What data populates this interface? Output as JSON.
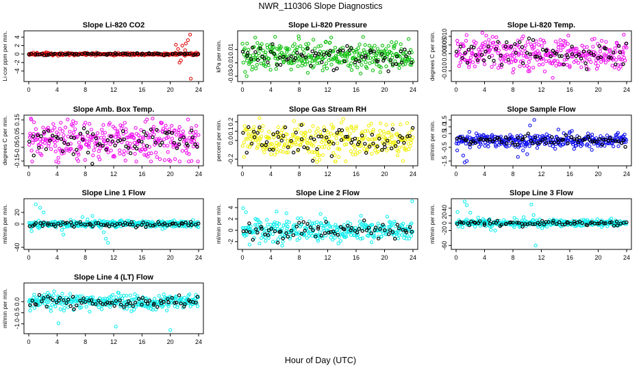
{
  "figure": {
    "title": "NWR_110306  Slope Diagnostics",
    "xlabel": "Hour of Day (UTC)"
  },
  "chart_data": [
    {
      "type": "scatter",
      "title": "Slope Li-820 CO2",
      "ylabel": "Li-cor ppm per min.",
      "xlim": [
        0,
        24
      ],
      "xticks": [
        "0",
        "4",
        "8",
        "12",
        "16",
        "20",
        "24"
      ],
      "ylim": [
        -6,
        5
      ],
      "yticks": [
        "-4",
        "-2",
        "0",
        "2",
        "4"
      ],
      "ytick_values": [
        -4,
        -2,
        0,
        2,
        4
      ],
      "color": "#e01010",
      "spread": 0.15,
      "outliers": [
        [
          20.8,
          2.2
        ],
        [
          21.1,
          1.2
        ],
        [
          21.3,
          -2.0
        ],
        [
          21.5,
          -1.5
        ],
        [
          22.2,
          2.5
        ],
        [
          22.5,
          3.3
        ],
        [
          22.8,
          4.6
        ],
        [
          22.9,
          -5.8
        ],
        [
          21.7,
          2.0
        ],
        [
          22.1,
          0.9
        ]
      ]
    },
    {
      "type": "scatter",
      "title": "Slope Li-820 Pressure",
      "ylabel": "kPa per min.",
      "xlim": [
        0,
        24
      ],
      "xticks": [
        "0",
        "4",
        "8",
        "12",
        "16",
        "20",
        "24"
      ],
      "ylim": [
        -0.035,
        0.035
      ],
      "yticks": [
        "-0.03",
        "-0.01",
        "0.01"
      ],
      "ytick_values": [
        -0.03,
        -0.01,
        0.01
      ],
      "color": "#10c010",
      "spread": 0.011,
      "outliers": [
        [
          0.6,
          -0.03
        ],
        [
          1.8,
          0.028
        ],
        [
          4.6,
          0.029
        ],
        [
          7.9,
          0.03
        ],
        [
          12.5,
          0.028
        ],
        [
          19.4,
          -0.024
        ],
        [
          9.2,
          -0.025
        ]
      ]
    },
    {
      "type": "scatter",
      "title": "Slope Li-820 Temp.",
      "ylabel": "degrees C per min.",
      "xlim": [
        0,
        24
      ],
      "xticks": [
        "0",
        "4",
        "8",
        "12",
        "16",
        "20",
        "24"
      ],
      "ylim": [
        -0.015,
        0.012
      ],
      "yticks": [
        "-0.010",
        "0.000",
        "0.005",
        "0.010"
      ],
      "ytick_values": [
        -0.01,
        0,
        0.005,
        0.01
      ],
      "color": "#ee10ee",
      "spread": 0.0045,
      "outliers": [
        [
          3.7,
          0.012
        ],
        [
          13.6,
          -0.014
        ],
        [
          8.0,
          -0.011
        ],
        [
          23.6,
          0.011
        ]
      ]
    },
    {
      "type": "scatter",
      "title": "Slope Amb. Box Temp.",
      "ylabel": "degrees C per min.",
      "xlim": [
        0,
        24
      ],
      "xticks": [
        "0",
        "4",
        "8",
        "12",
        "16",
        "20",
        "24"
      ],
      "ylim": [
        -0.17,
        0.17
      ],
      "yticks": [
        "-0.15",
        "-0.05",
        "0.05",
        "0.15"
      ],
      "ytick_values": [
        -0.15,
        -0.05,
        0.05,
        0.15
      ],
      "color": "#ee10ee",
      "spread": 0.07,
      "outliers": [
        [
          0.3,
          0.16
        ],
        [
          4.2,
          -0.16
        ],
        [
          7.0,
          -0.15
        ],
        [
          17.5,
          0.16
        ],
        [
          23.0,
          -0.15
        ]
      ]
    },
    {
      "type": "scatter",
      "title": "Slope Gas Stream RH",
      "ylabel": "percent per min.",
      "xlim": [
        0,
        24
      ],
      "xticks": [
        "0",
        "4",
        "8",
        "12",
        "16",
        "20",
        "24"
      ],
      "ylim": [
        -0.25,
        0.25
      ],
      "yticks": [
        "-0.2",
        "0.0",
        "0.1",
        "0.2"
      ],
      "ytick_values": [
        -0.2,
        0,
        0.1,
        0.2
      ],
      "color": "#f0f010",
      "spread": 0.09,
      "outliers": [
        [
          2.4,
          0.24
        ],
        [
          10.5,
          -0.23
        ],
        [
          22.6,
          -0.22
        ],
        [
          14.2,
          0.23
        ]
      ]
    },
    {
      "type": "scatter",
      "title": "Slope Sample Flow",
      "ylabel": "ml/min per min.",
      "xlim": [
        0,
        24
      ],
      "xticks": [
        "0",
        "4",
        "8",
        "12",
        "16",
        "20",
        "24"
      ],
      "ylim": [
        -1.7,
        1.7
      ],
      "yticks": [
        "-1.5",
        "-0.5",
        "0.5",
        "1.0",
        "1.5"
      ],
      "ytick_values": [
        -1.5,
        -0.5,
        0.5,
        1.0,
        1.5
      ],
      "color": "#1010ee",
      "spread": 0.25,
      "outliers": [
        [
          1.2,
          -1.6
        ],
        [
          1.5,
          -1.5
        ],
        [
          11.0,
          1.5
        ],
        [
          10.4,
          1.1
        ],
        [
          8.7,
          -1.2
        ],
        [
          10.0,
          -1.0
        ],
        [
          14.4,
          0.8
        ],
        [
          16.3,
          0.7
        ],
        [
          1.0,
          -1.1
        ]
      ]
    },
    {
      "type": "scatter",
      "title": "Slope Line 1 Flow",
      "ylabel": "ml/min per min.",
      "xlim": [
        0,
        24
      ],
      "xticks": [
        "0",
        "4",
        "8",
        "12",
        "16",
        "20",
        "24"
      ],
      "ylim": [
        -40,
        40
      ],
      "yticks": [
        "-40",
        "0",
        "20"
      ],
      "ytick_values": [
        -40,
        0,
        20
      ],
      "color": "#10eeee",
      "spread": 3.0,
      "outliers": [
        [
          1.0,
          34
        ],
        [
          1.6,
          28
        ],
        [
          2.1,
          20
        ],
        [
          0.4,
          -12
        ],
        [
          4.7,
          -10
        ],
        [
          4.9,
          -18
        ],
        [
          10.6,
          -14
        ],
        [
          10.9,
          -25
        ],
        [
          11.2,
          -32
        ],
        [
          7.6,
          12
        ],
        [
          8.3,
          8
        ],
        [
          9.0,
          14
        ]
      ]
    },
    {
      "type": "scatter",
      "title": "Slope Line 2 Flow",
      "ylabel": "ml/min per min.",
      "xlim": [
        0,
        24
      ],
      "xticks": [
        "0",
        "4",
        "8",
        "12",
        "16",
        "20",
        "24"
      ],
      "ylim": [
        -3,
        5.2
      ],
      "yticks": [
        "-2",
        "0",
        "2",
        "4"
      ],
      "ytick_values": [
        -2,
        0,
        2,
        4
      ],
      "color": "#10eeee",
      "spread": 0.9,
      "outliers": [
        [
          0.1,
          3.9
        ],
        [
          0.5,
          3.2
        ],
        [
          4.8,
          3.3
        ],
        [
          6.2,
          3.0
        ],
        [
          11.0,
          2.9
        ],
        [
          23.9,
          5.1
        ],
        [
          1.0,
          -2.5
        ],
        [
          5.6,
          -2.7
        ],
        [
          4.3,
          -2.0
        ],
        [
          13.5,
          -2.3
        ]
      ]
    },
    {
      "type": "scatter",
      "title": "Slope Line 3 Flow",
      "ylabel": "ml/min per min.",
      "xlim": [
        0,
        24
      ],
      "xticks": [
        "0",
        "4",
        "8",
        "12",
        "16",
        "20",
        "24"
      ],
      "ylim": [
        -65,
        60
      ],
      "yticks": [
        "-60",
        "-20",
        "0",
        "20",
        "40"
      ],
      "ytick_values": [
        -60,
        -20,
        0,
        20,
        40
      ],
      "color": "#10eeee",
      "spread": 4.5,
      "outliers": [
        [
          1.2,
          58
        ],
        [
          1.5,
          48
        ],
        [
          2.0,
          28
        ],
        [
          0.2,
          30
        ],
        [
          4.9,
          -18
        ],
        [
          5.5,
          -20
        ],
        [
          10.6,
          50
        ],
        [
          10.9,
          22
        ],
        [
          11.2,
          -60
        ],
        [
          8.2,
          14
        ],
        [
          9.5,
          16
        ],
        [
          3.1,
          15
        ]
      ]
    },
    {
      "type": "scatter",
      "title": "Slope Line 4 (LT) Flow",
      "ylabel": "ml/min per min.",
      "xlim": [
        0,
        24
      ],
      "xticks": [
        "0",
        "4",
        "8",
        "12",
        "16",
        "20",
        "24"
      ],
      "ylim": [
        -1.35,
        0.75
      ],
      "yticks": [
        "-1.0",
        "-0.5",
        "0.0"
      ],
      "ytick_values": [
        -1,
        -0.5,
        0
      ],
      "color": "#10eeee",
      "spread": 0.17,
      "outliers": [
        [
          4.2,
          -0.97
        ],
        [
          12.3,
          -1.12
        ],
        [
          20.0,
          -1.28
        ],
        [
          0.2,
          -0.4
        ],
        [
          8.6,
          -0.45
        ]
      ]
    }
  ]
}
